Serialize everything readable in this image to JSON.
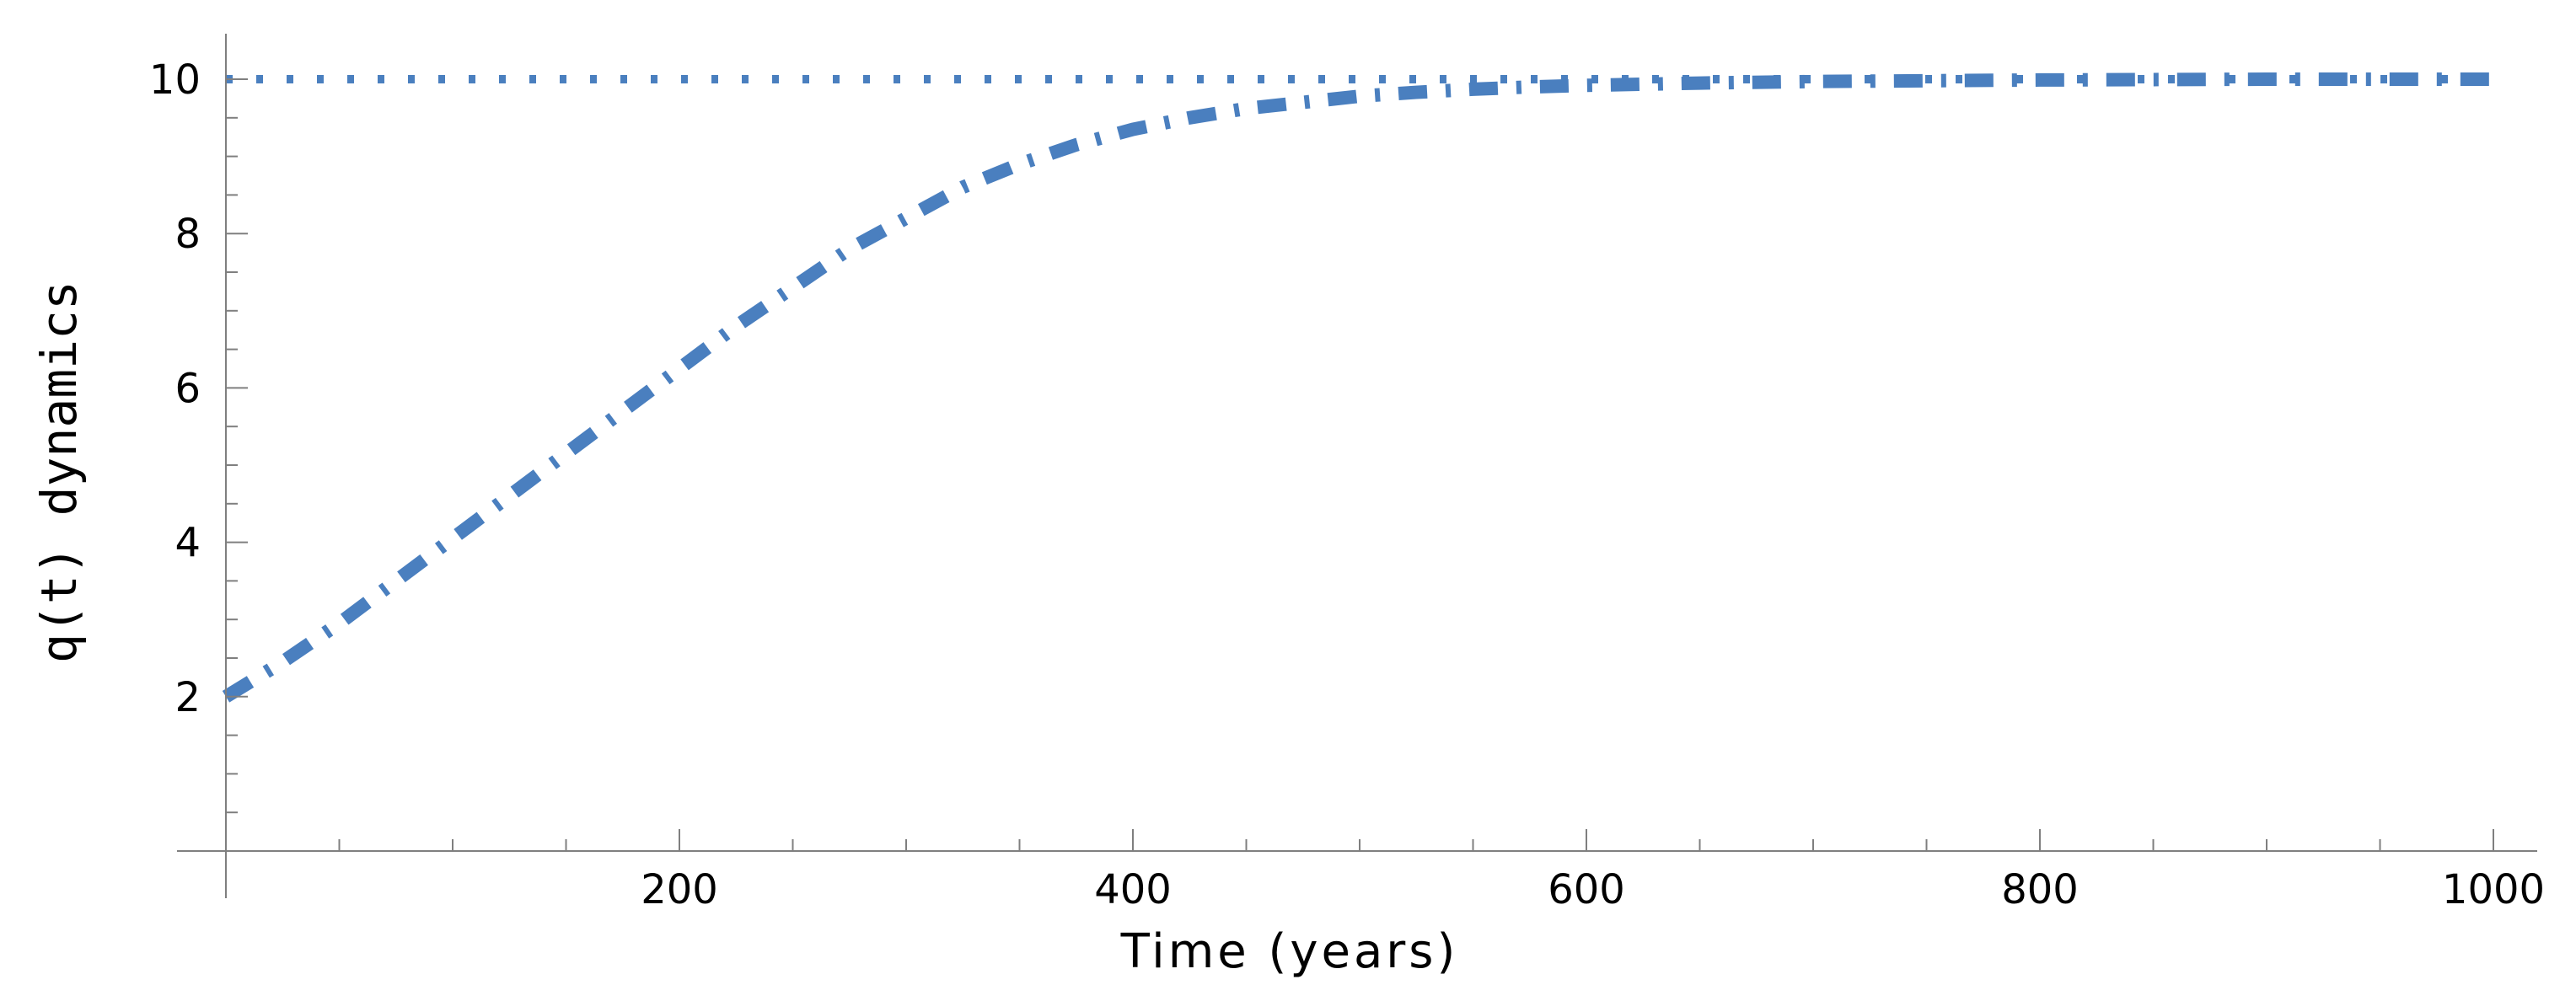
{
  "chart_data": {
    "type": "line",
    "xlabel": "Time (years)",
    "ylabel": "q(t) dynamics",
    "xlim": [
      0,
      1000
    ],
    "ylim": [
      0,
      10.5
    ],
    "x_ticks": [
      200,
      400,
      600,
      800,
      1000
    ],
    "y_ticks": [
      2,
      4,
      6,
      8,
      10
    ],
    "grid": false,
    "series": [
      {
        "style": "dotted",
        "x": [
          0,
          100,
          200,
          300,
          400,
          500,
          600,
          700,
          800,
          900,
          1000
        ],
        "y": [
          10,
          10,
          10,
          10,
          10,
          10,
          10,
          10,
          10,
          10,
          10
        ]
      },
      {
        "style": "dash-dot",
        "x": [
          0,
          25,
          50,
          75,
          100,
          125,
          150,
          175,
          200,
          225,
          250,
          275,
          300,
          325,
          350,
          375,
          400,
          425,
          450,
          475,
          500,
          525,
          550,
          575,
          600,
          650,
          700,
          750,
          800,
          850,
          900,
          950,
          1000
        ],
        "y": [
          2.0,
          2.45,
          2.95,
          3.5,
          4.05,
          4.6,
          5.15,
          5.7,
          6.25,
          6.8,
          7.3,
          7.8,
          8.2,
          8.6,
          8.9,
          9.15,
          9.35,
          9.5,
          9.62,
          9.7,
          9.78,
          9.83,
          9.87,
          9.9,
          9.92,
          9.95,
          9.97,
          9.98,
          9.99,
          9.995,
          10.0,
          10.0,
          10.0
        ]
      }
    ],
    "colors": {
      "series": "#4a7fbf",
      "axis": "#7f7f7f"
    }
  }
}
